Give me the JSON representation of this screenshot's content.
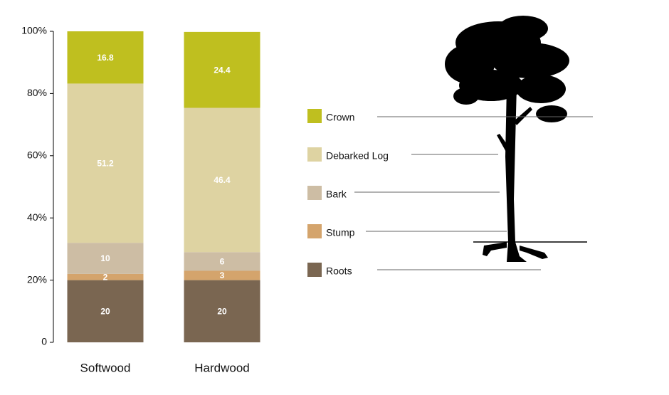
{
  "chart_data": {
    "type": "stacked-bar",
    "categories": [
      "Softwood",
      "Hardwood"
    ],
    "series": [
      {
        "name": "Roots",
        "color": "#7a6651",
        "values": [
          20,
          20
        ]
      },
      {
        "name": "Stump",
        "color": "#d4a46c",
        "values": [
          2,
          3
        ]
      },
      {
        "name": "Bark",
        "color": "#cdbda4",
        "values": [
          10,
          6
        ]
      },
      {
        "name": "Debarked Log",
        "color": "#ded3a2",
        "values": [
          51.2,
          46.4
        ]
      },
      {
        "name": "Crown",
        "color": "#bfbf1f",
        "values": [
          16.8,
          24.4
        ]
      }
    ],
    "ylim": [
      0,
      100
    ],
    "yticks": [
      0,
      {
        "value": 20,
        "label": "20%"
      },
      {
        "value": 40,
        "label": "40%"
      },
      {
        "value": 60,
        "label": "60%"
      },
      {
        "value": 80,
        "label": "80%"
      },
      {
        "value": 100,
        "label": "100%"
      }
    ]
  }
}
